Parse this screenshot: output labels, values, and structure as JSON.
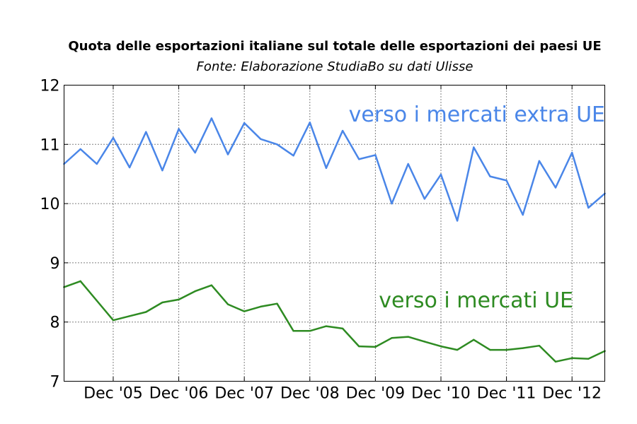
{
  "chart_data": {
    "type": "line",
    "title": "Quota delle esportazioni italiane sul totale delle esportazioni dei paesi UE",
    "subtitle": "Fonte: Elaborazione StudiaBo su dati Ulisse",
    "x_tick_labels": [
      "Dec '05",
      "Dec '06",
      "Dec '07",
      "Dec '08",
      "Dec '09",
      "Dec '10",
      "Dec '11",
      "Dec '12"
    ],
    "x_period": "quarterly",
    "x_first_label_index": 3,
    "y_ticks": [
      7,
      8,
      9,
      10,
      11,
      12
    ],
    "ylim": [
      7,
      12
    ],
    "grid": true,
    "series": [
      {
        "name": "verso i mercati extra UE",
        "color": "#4a86e8",
        "values": [
          10.67,
          10.92,
          10.67,
          11.11,
          10.61,
          11.21,
          10.56,
          11.26,
          10.86,
          11.44,
          10.83,
          11.36,
          11.09,
          11.0,
          10.81,
          11.37,
          10.6,
          11.23,
          10.75,
          10.82,
          10.0,
          10.67,
          10.08,
          10.49,
          9.71,
          10.95,
          10.46,
          10.39,
          9.81,
          10.72,
          10.27,
          10.86,
          9.93,
          10.17
        ]
      },
      {
        "name": "verso i mercati UE",
        "color": "#2e8b22",
        "values": [
          8.59,
          8.69,
          8.36,
          8.03,
          8.1,
          8.17,
          8.33,
          8.38,
          8.52,
          8.62,
          8.3,
          8.18,
          8.26,
          8.31,
          7.85,
          7.85,
          7.93,
          7.89,
          7.59,
          7.58,
          7.73,
          7.75,
          7.67,
          7.59,
          7.53,
          7.7,
          7.53,
          7.53,
          7.56,
          7.6,
          7.33,
          7.39,
          7.38,
          7.51
        ]
      }
    ]
  }
}
